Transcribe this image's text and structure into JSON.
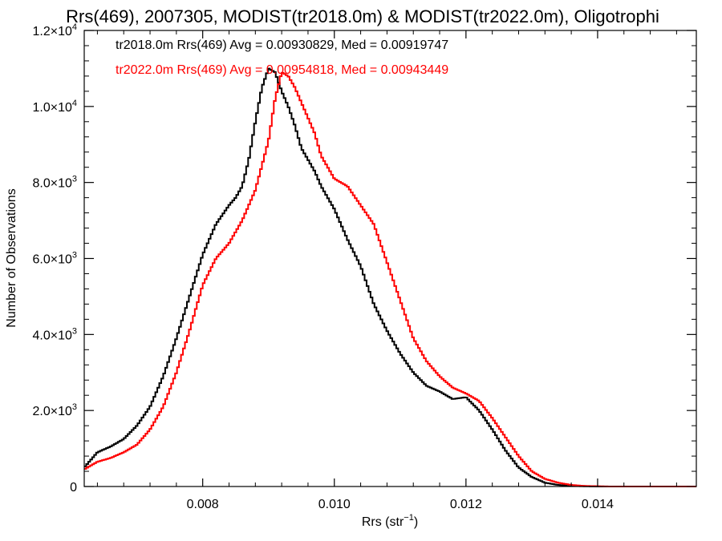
{
  "chart_data": {
    "type": "line",
    "title": "Rrs(469), 2007305, MODIST(tr2018.0m) & MODIST(tr2022.0m), Oligotrophi",
    "xlabel_main": "Rrs (str",
    "xlabel_sup": "−1",
    "xlabel_end": ")",
    "ylabel": "Number of Observations",
    "xlim": [
      0.0062,
      0.0155
    ],
    "ylim": [
      0,
      12000
    ],
    "x_ticks": [
      {
        "value": 0.008,
        "label": "0.008"
      },
      {
        "value": 0.01,
        "label": "0.010"
      },
      {
        "value": 0.012,
        "label": "0.012"
      },
      {
        "value": 0.014,
        "label": "0.014"
      }
    ],
    "y_ticks": [
      {
        "value": 0,
        "mant": "0",
        "exp": ""
      },
      {
        "value": 2000,
        "mant": "2.0×10",
        "exp": "3"
      },
      {
        "value": 4000,
        "mant": "4.0×10",
        "exp": "3"
      },
      {
        "value": 6000,
        "mant": "6.0×10",
        "exp": "3"
      },
      {
        "value": 8000,
        "mant": "8.0×10",
        "exp": "3"
      },
      {
        "value": 10000,
        "mant": "1.0×10",
        "exp": "4"
      },
      {
        "value": 12000,
        "mant": "1.2×10",
        "exp": "4"
      }
    ],
    "series": [
      {
        "legend": "tr2018.0m Rrs(469) Avg = 0.00930829, Med = 0.00919747",
        "color": "#000000",
        "points": [
          [
            0.0062,
            500
          ],
          [
            0.0064,
            900
          ],
          [
            0.0066,
            1050
          ],
          [
            0.0068,
            1250
          ],
          [
            0.007,
            1600
          ],
          [
            0.0072,
            2100
          ],
          [
            0.0074,
            2900
          ],
          [
            0.0076,
            3900
          ],
          [
            0.0078,
            5000
          ],
          [
            0.008,
            6100
          ],
          [
            0.0082,
            6900
          ],
          [
            0.0084,
            7400
          ],
          [
            0.0085,
            7600
          ],
          [
            0.0086,
            7900
          ],
          [
            0.0087,
            8600
          ],
          [
            0.0088,
            9600
          ],
          [
            0.0089,
            10500
          ],
          [
            0.009,
            11000
          ],
          [
            0.0091,
            10900
          ],
          [
            0.0092,
            10400
          ],
          [
            0.0093,
            10000
          ],
          [
            0.0094,
            9500
          ],
          [
            0.0095,
            8900
          ],
          [
            0.0096,
            8600
          ],
          [
            0.0097,
            8300
          ],
          [
            0.0098,
            7900
          ],
          [
            0.01,
            7300
          ],
          [
            0.0102,
            6500
          ],
          [
            0.0104,
            5800
          ],
          [
            0.0106,
            4800
          ],
          [
            0.0108,
            4100
          ],
          [
            0.011,
            3500
          ],
          [
            0.0112,
            3000
          ],
          [
            0.0114,
            2650
          ],
          [
            0.0116,
            2500
          ],
          [
            0.0118,
            2300
          ],
          [
            0.012,
            2350
          ],
          [
            0.0122,
            2000
          ],
          [
            0.0124,
            1500
          ],
          [
            0.0126,
            950
          ],
          [
            0.0128,
            500
          ],
          [
            0.013,
            250
          ],
          [
            0.0132,
            100
          ],
          [
            0.0134,
            40
          ],
          [
            0.0137,
            10
          ],
          [
            0.014,
            0
          ],
          [
            0.0155,
            0
          ]
        ]
      },
      {
        "legend": "tr2022.0m Rrs(469) Avg = 0.00954818, Med = 0.00943449",
        "color": "#ff0000",
        "points": [
          [
            0.0062,
            450
          ],
          [
            0.0064,
            650
          ],
          [
            0.0066,
            750
          ],
          [
            0.0068,
            900
          ],
          [
            0.007,
            1100
          ],
          [
            0.0072,
            1500
          ],
          [
            0.0074,
            2100
          ],
          [
            0.0076,
            3000
          ],
          [
            0.0078,
            4100
          ],
          [
            0.008,
            5300
          ],
          [
            0.0082,
            6000
          ],
          [
            0.0084,
            6400
          ],
          [
            0.0086,
            7000
          ],
          [
            0.0088,
            7800
          ],
          [
            0.009,
            9100
          ],
          [
            0.0091,
            10200
          ],
          [
            0.0092,
            10900
          ],
          [
            0.0093,
            10800
          ],
          [
            0.0094,
            10500
          ],
          [
            0.0095,
            10100
          ],
          [
            0.0096,
            9700
          ],
          [
            0.0097,
            9300
          ],
          [
            0.0098,
            8700
          ],
          [
            0.01,
            8100
          ],
          [
            0.0102,
            7900
          ],
          [
            0.0104,
            7400
          ],
          [
            0.0106,
            6900
          ],
          [
            0.0108,
            5900
          ],
          [
            0.011,
            4900
          ],
          [
            0.0112,
            3900
          ],
          [
            0.0114,
            3300
          ],
          [
            0.0116,
            2900
          ],
          [
            0.0118,
            2600
          ],
          [
            0.012,
            2450
          ],
          [
            0.0122,
            2250
          ],
          [
            0.0124,
            1800
          ],
          [
            0.0126,
            1300
          ],
          [
            0.0128,
            800
          ],
          [
            0.013,
            400
          ],
          [
            0.0132,
            200
          ],
          [
            0.0134,
            100
          ],
          [
            0.0136,
            40
          ],
          [
            0.0138,
            15
          ],
          [
            0.0142,
            0
          ],
          [
            0.0155,
            0
          ]
        ]
      }
    ]
  }
}
